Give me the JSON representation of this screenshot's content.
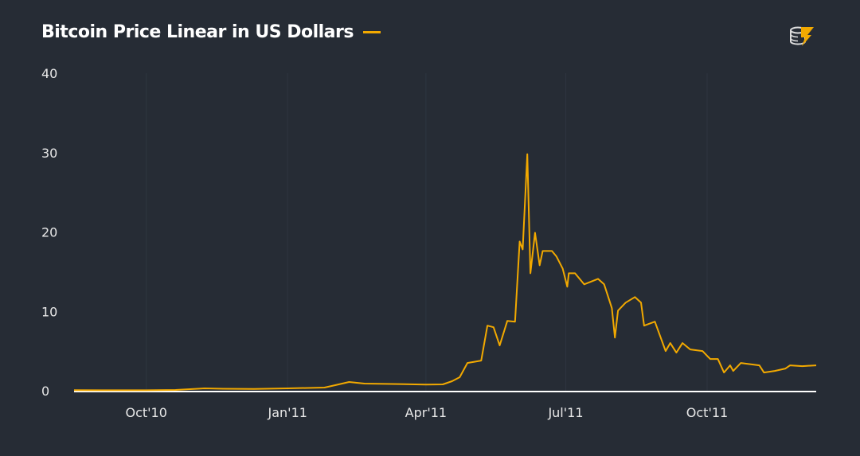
{
  "chart_data": {
    "type": "line",
    "title": "Bitcoin Price Linear in US Dollars",
    "xlabel": "",
    "ylabel": "",
    "ylim": [
      0,
      40
    ],
    "yticks": [
      0,
      10,
      20,
      30,
      40
    ],
    "xlim": [
      "2010-08-15",
      "2011-12-11"
    ],
    "xticks": [
      {
        "date": "2010-10-01",
        "label": "Oct'10"
      },
      {
        "date": "2011-01-01",
        "label": "Jan'11"
      },
      {
        "date": "2011-04-01",
        "label": "Apr'11"
      },
      {
        "date": "2011-07-01",
        "label": "Jul'11"
      },
      {
        "date": "2011-10-01",
        "label": "Oct'11"
      }
    ],
    "grid": "vertical",
    "legend": "inline-with-title",
    "colors": {
      "line": "#f2a900",
      "background": "#262c35",
      "axis": "#ffffff"
    },
    "series": [
      {
        "points": [
          [
            "2010-08-15",
            0.07
          ],
          [
            "2010-09-15",
            0.06
          ],
          [
            "2010-10-01",
            0.06
          ],
          [
            "2010-10-20",
            0.1
          ],
          [
            "2010-11-08",
            0.3
          ],
          [
            "2010-11-20",
            0.25
          ],
          [
            "2010-12-10",
            0.22
          ],
          [
            "2011-01-01",
            0.3
          ],
          [
            "2011-01-25",
            0.4
          ],
          [
            "2011-02-01",
            0.7
          ],
          [
            "2011-02-10",
            1.1
          ],
          [
            "2011-02-20",
            0.9
          ],
          [
            "2011-03-10",
            0.85
          ],
          [
            "2011-04-01",
            0.78
          ],
          [
            "2011-04-12",
            0.8
          ],
          [
            "2011-04-18",
            1.2
          ],
          [
            "2011-04-23",
            1.7
          ],
          [
            "2011-04-28",
            3.5
          ],
          [
            "2011-05-07",
            3.8
          ],
          [
            "2011-05-11",
            8.2
          ],
          [
            "2011-05-15",
            8.0
          ],
          [
            "2011-05-19",
            5.7
          ],
          [
            "2011-05-24",
            8.8
          ],
          [
            "2011-05-29",
            8.7
          ],
          [
            "2011-06-01",
            18.8
          ],
          [
            "2011-06-03",
            17.8
          ],
          [
            "2011-06-06",
            29.8
          ],
          [
            "2011-06-08",
            14.8
          ],
          [
            "2011-06-11",
            19.9
          ],
          [
            "2011-06-14",
            15.8
          ],
          [
            "2011-06-16",
            17.6
          ],
          [
            "2011-06-22",
            17.6
          ],
          [
            "2011-06-25",
            16.9
          ],
          [
            "2011-06-29",
            15.4
          ],
          [
            "2011-07-02",
            13.1
          ],
          [
            "2011-07-03",
            14.8
          ],
          [
            "2011-07-07",
            14.8
          ],
          [
            "2011-07-13",
            13.4
          ],
          [
            "2011-07-22",
            14.1
          ],
          [
            "2011-07-26",
            13.4
          ],
          [
            "2011-07-31",
            10.4
          ],
          [
            "2011-08-02",
            6.7
          ],
          [
            "2011-08-04",
            10.1
          ],
          [
            "2011-08-09",
            11.1
          ],
          [
            "2011-08-15",
            11.8
          ],
          [
            "2011-08-19",
            11.1
          ],
          [
            "2011-08-21",
            8.2
          ],
          [
            "2011-08-28",
            8.7
          ],
          [
            "2011-09-04",
            5.0
          ],
          [
            "2011-09-07",
            6.0
          ],
          [
            "2011-09-11",
            4.8
          ],
          [
            "2011-09-15",
            6.0
          ],
          [
            "2011-09-20",
            5.2
          ],
          [
            "2011-09-28",
            5.0
          ],
          [
            "2011-10-03",
            4.0
          ],
          [
            "2011-10-08",
            4.0
          ],
          [
            "2011-10-12",
            2.3
          ],
          [
            "2011-10-16",
            3.2
          ],
          [
            "2011-10-18",
            2.5
          ],
          [
            "2011-10-23",
            3.5
          ],
          [
            "2011-11-04",
            3.2
          ],
          [
            "2011-11-07",
            2.3
          ],
          [
            "2011-11-14",
            2.5
          ],
          [
            "2011-11-21",
            2.8
          ],
          [
            "2011-11-24",
            3.2
          ],
          [
            "2011-12-02",
            3.1
          ],
          [
            "2011-12-11",
            3.2
          ]
        ]
      }
    ]
  },
  "logo": "coin-stack-lightning-logo"
}
